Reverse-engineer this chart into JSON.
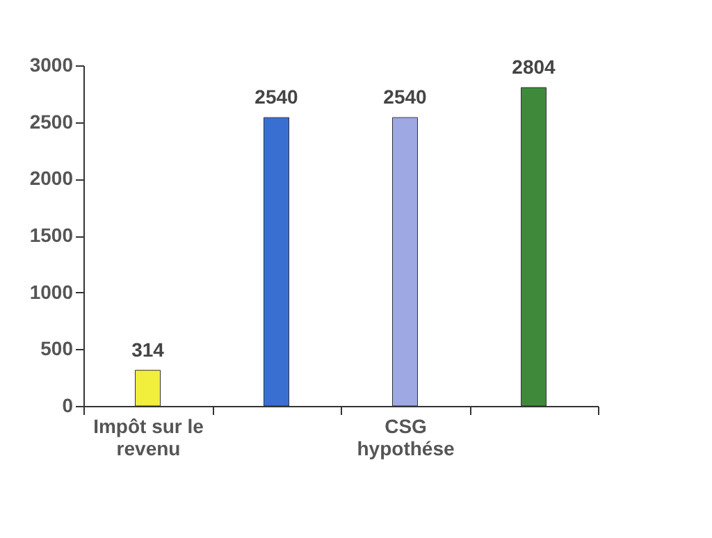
{
  "chart_data": {
    "type": "bar",
    "categories": [
      "Impôt sur le revenu",
      null,
      "CSG hypothése",
      null
    ],
    "values": [
      314,
      2540,
      2540,
      2804
    ],
    "colors": [
      "#f2ee3c",
      "#3a6fd2",
      "#9ea8e2",
      "#3f8a3a"
    ],
    "ylim": [
      0,
      3000
    ],
    "yticks": [
      0,
      500,
      1000,
      1500,
      2000,
      2500,
      3000
    ],
    "data_labels": true,
    "grid": false
  }
}
